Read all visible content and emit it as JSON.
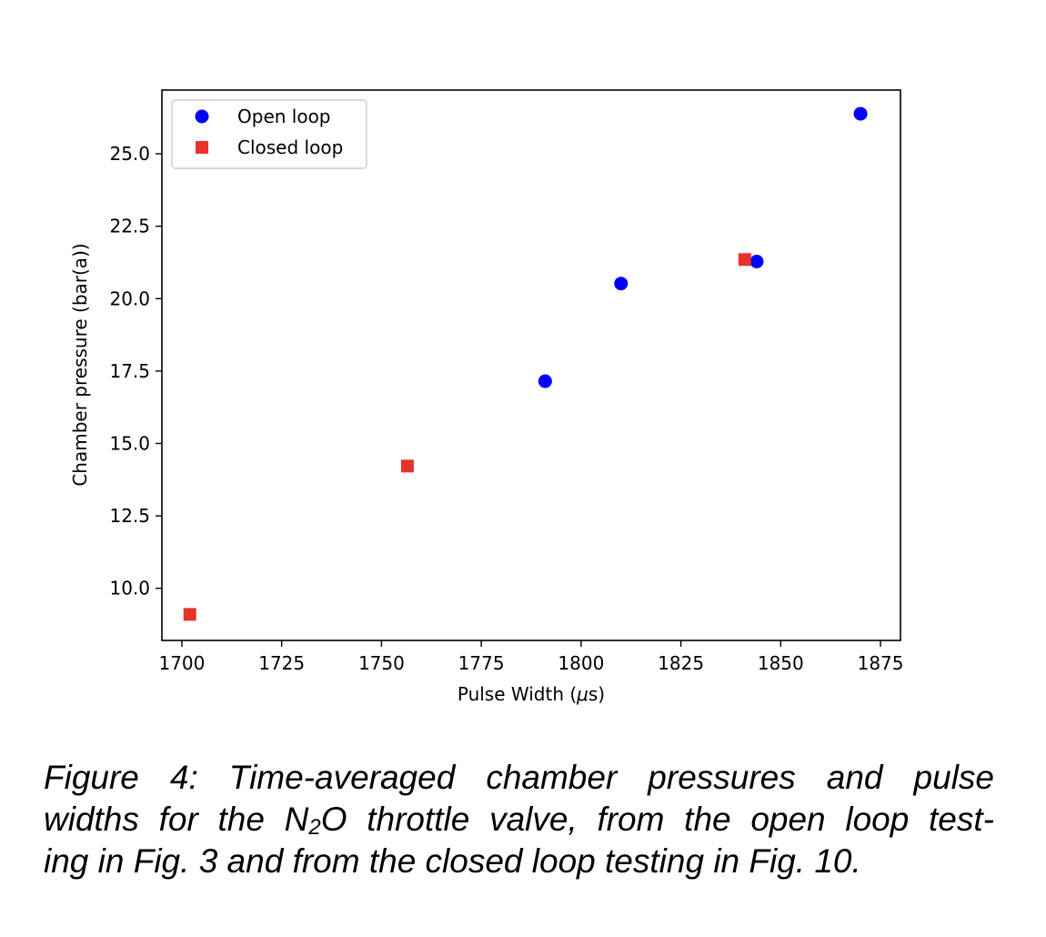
{
  "chart_data": {
    "type": "scatter",
    "xlabel_prefix": "Pulse Width (",
    "xlabel_mu": "μ",
    "xlabel_suffix": "s)",
    "ylabel": "Chamber pressure (bar(a))",
    "xlim": [
      1695,
      1880
    ],
    "ylim": [
      8.2,
      27.2
    ],
    "xticks": [
      1700,
      1725,
      1750,
      1775,
      1800,
      1825,
      1850,
      1875
    ],
    "yticks": [
      10.0,
      12.5,
      15.0,
      17.5,
      20.0,
      22.5,
      25.0
    ],
    "grid": false,
    "legend_position": "upper-left",
    "series": [
      {
        "name": "Open loop",
        "marker": "circle",
        "color": "#0000ff",
        "points": [
          {
            "x": 1791,
            "y": 17.15
          },
          {
            "x": 1810,
            "y": 20.52
          },
          {
            "x": 1844,
            "y": 21.28
          },
          {
            "x": 1870,
            "y": 26.38
          }
        ]
      },
      {
        "name": "Closed loop",
        "marker": "square",
        "color": "#e8332a",
        "points": [
          {
            "x": 1702,
            "y": 9.1
          },
          {
            "x": 1756.5,
            "y": 14.22
          },
          {
            "x": 1841,
            "y": 21.35
          }
        ]
      }
    ]
  },
  "caption": {
    "line1": "Figure 4:  Time-averaged chamber pressures and pulse",
    "line2_a": "widths for the N",
    "line2_sub": "2",
    "line2_b": "O throttle valve, from the open loop test-",
    "line3": "ing in Fig. 3 and from the closed loop testing in Fig. 10."
  }
}
